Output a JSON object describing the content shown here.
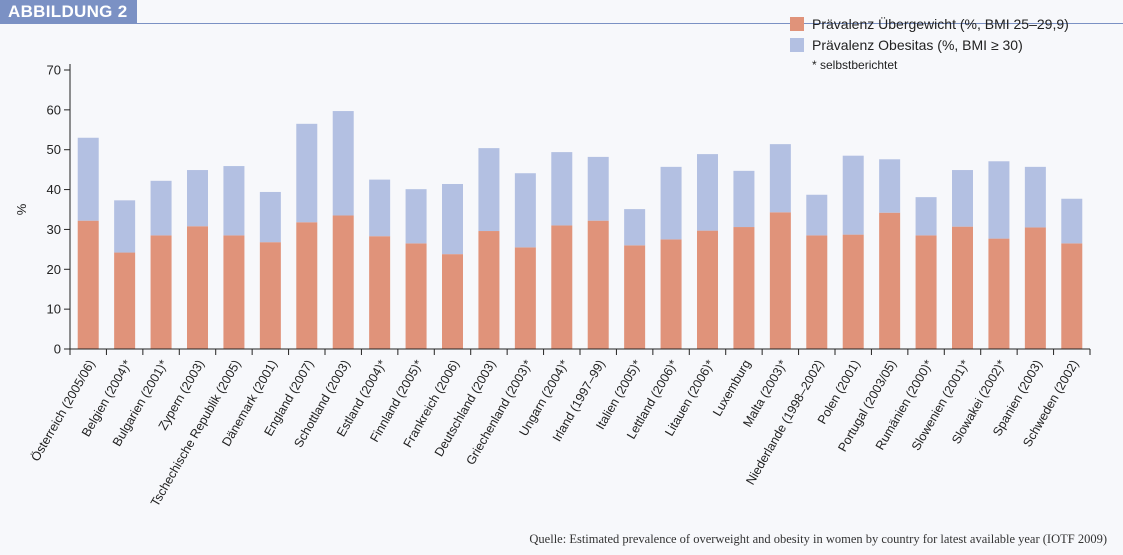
{
  "figure_label": "ABBILDUNG 2",
  "source_note": "Quelle: Estimated prevalence of overweight and obesity in women by country for latest available year (IOTF 2009)",
  "chart_data": {
    "type": "bar",
    "stacked": true,
    "title": "",
    "xlabel": "",
    "ylabel": "%",
    "ylim": [
      0,
      70
    ],
    "yticks": [
      0,
      10,
      20,
      30,
      40,
      50,
      60,
      70
    ],
    "grid": false,
    "legend_position": "top-right",
    "legend_note": "* selbstberichtet",
    "categories": [
      "Österreich (2005/06)",
      "Belgien (2004)*",
      "Bulgarien (2001)*",
      "Zypern (2003)",
      "Tschechische Republik (2005)",
      "Dänemark (2001)",
      "England (2007)",
      "Schottland (2003)",
      "Estland (2004)*",
      "Finnland (2005)*",
      "Frankreich (2006)",
      "Deutschland (2003)",
      "Griechenland (2003)*",
      "Ungarn (2004)*",
      "Irland (1997–99)",
      "Italien (2005)*",
      "Lettland (2006)*",
      "Litauen (2006)*",
      "Luxemburg",
      "Malta (2003)*",
      "Niederlande (1998–2002)",
      "Polen (2001)",
      "Portugal (2003/05)",
      "Rumänien (2000)*",
      "Slowenien (2001)*",
      "Slowakei (2002)*",
      "Spanien (2003)",
      "Schweden (2002)"
    ],
    "series": [
      {
        "name": "Prävalenz Übergewicht (%, BMI 25–29,9)",
        "color": "#e0937a",
        "values": [
          32.2,
          24.2,
          28.5,
          30.8,
          28.5,
          26.8,
          31.8,
          33.5,
          28.3,
          26.5,
          23.8,
          29.6,
          25.5,
          31.0,
          32.2,
          26.0,
          27.5,
          29.7,
          30.6,
          34.3,
          28.5,
          28.7,
          34.2,
          28.5,
          30.7,
          27.7,
          30.5,
          26.5
        ]
      },
      {
        "name": "Prävalenz Obesitas (%, BMI ≥ 30)",
        "color": "#b3c0e2",
        "values": [
          20.8,
          13.1,
          13.7,
          14.1,
          17.4,
          12.6,
          24.7,
          26.2,
          14.2,
          13.6,
          17.6,
          20.8,
          18.6,
          18.4,
          16.0,
          9.1,
          18.2,
          19.2,
          14.1,
          17.1,
          10.2,
          19.8,
          13.4,
          9.6,
          14.2,
          19.4,
          15.2,
          11.2
        ]
      }
    ]
  }
}
